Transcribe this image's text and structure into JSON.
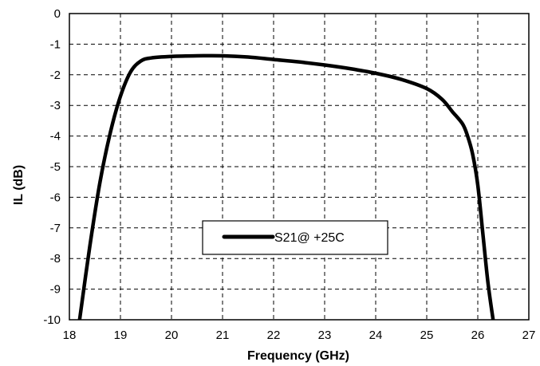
{
  "chart_data": {
    "type": "line",
    "title": "",
    "xlabel": "Frequency (GHz)",
    "ylabel": "IL (dB)",
    "xlim": [
      18,
      27
    ],
    "ylim": [
      -10,
      0
    ],
    "x_ticks": [
      "18",
      "19",
      "20",
      "21",
      "22",
      "23",
      "24",
      "25",
      "26",
      "27"
    ],
    "y_ticks": [
      "0",
      "-1",
      "-2",
      "-3",
      "-4",
      "-5",
      "-6",
      "-7",
      "-8",
      "-9",
      "-10"
    ],
    "grid": "dashed",
    "legend_position": "center",
    "series": [
      {
        "name": "S21@ +25C",
        "color": "#000000",
        "x": [
          18.2,
          18.4,
          18.6,
          18.8,
          19.0,
          19.2,
          19.4,
          19.6,
          20.0,
          20.5,
          21.0,
          21.5,
          22.0,
          22.5,
          23.0,
          23.5,
          24.0,
          24.5,
          25.0,
          25.3,
          25.5,
          25.7,
          25.8,
          25.9,
          26.0,
          26.1,
          26.2,
          26.3
        ],
        "y": [
          -10.0,
          -7.6,
          -5.5,
          -3.9,
          -2.7,
          -1.9,
          -1.55,
          -1.45,
          -1.4,
          -1.38,
          -1.38,
          -1.42,
          -1.5,
          -1.58,
          -1.68,
          -1.8,
          -1.95,
          -2.15,
          -2.45,
          -2.8,
          -3.2,
          -3.6,
          -4.0,
          -4.6,
          -5.6,
          -7.2,
          -8.8,
          -10.0
        ]
      }
    ]
  }
}
